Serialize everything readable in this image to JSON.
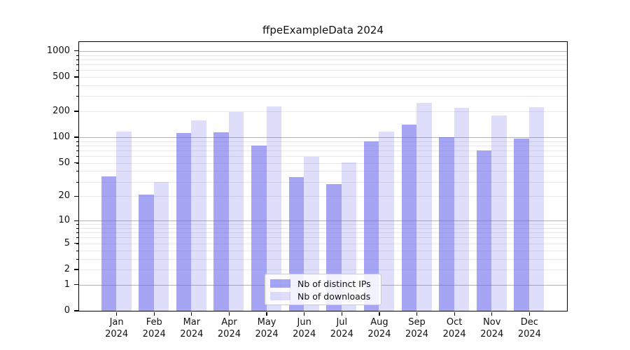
{
  "title": "ffpeExampleData 2024",
  "chart_data": {
    "type": "bar",
    "title": "ffpeExampleData 2024",
    "categories": [
      "Jan",
      "Feb",
      "Mar",
      "Apr",
      "May",
      "Jun",
      "Jul",
      "Aug",
      "Sep",
      "Oct",
      "Nov",
      "Dec"
    ],
    "x_year_label": "2024",
    "series": [
      {
        "name": "Nb of distinct IPs",
        "color": "rgba(100,100,235,0.58)",
        "values": [
          35,
          21,
          112,
          114,
          80,
          34,
          28,
          90,
          141,
          100,
          70,
          96
        ]
      },
      {
        "name": "Nb of downloads",
        "color": "rgba(100,100,235,0.21)",
        "values": [
          116,
          30,
          158,
          197,
          227,
          59,
          51,
          117,
          249,
          220,
          179,
          223
        ]
      }
    ],
    "y_axis": {
      "scale": "log1p",
      "tick_values": [
        0,
        1,
        2,
        5,
        10,
        20,
        50,
        100,
        200,
        500,
        1000
      ],
      "minor_grid_values": [
        2,
        3,
        4,
        5,
        6,
        7,
        8,
        9,
        20,
        30,
        40,
        50,
        60,
        70,
        80,
        90,
        200,
        300,
        400,
        500,
        600,
        700,
        800,
        900
      ],
      "major_grid_values": [
        1,
        10,
        100,
        1000
      ],
      "ylim": [
        0,
        1000
      ]
    },
    "legend": {
      "position": "lower-center-inside"
    },
    "grid": "on",
    "colors": {
      "bar_distinct_ips": "rgba(100,100,235,0.58)",
      "bar_downloads": "rgba(100,100,235,0.21)",
      "grid_major": "#b3b3b3",
      "grid_minor": "#e9e9e9",
      "axis_frame": "#000000"
    }
  }
}
